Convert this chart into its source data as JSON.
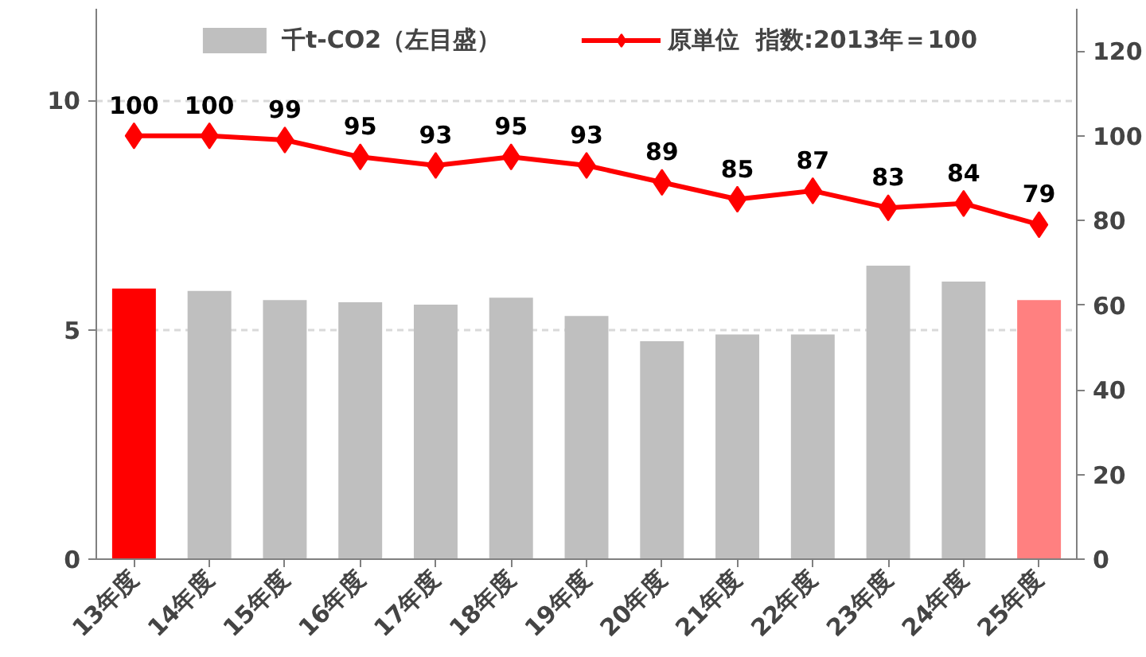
{
  "chart_data": {
    "type": "bar",
    "categories": [
      "13年度",
      "14年度",
      "15年度",
      "16年度",
      "17年度",
      "18年度",
      "19年度",
      "20年度",
      "21年度",
      "22年度",
      "23年度",
      "24年度",
      "25年度"
    ],
    "series": [
      {
        "name": "千t-CO2（左目盛）",
        "color": "#bfbfbf",
        "colors": [
          "#ff0000",
          "#bfbfbf",
          "#bfbfbf",
          "#bfbfbf",
          "#bfbfbf",
          "#bfbfbf",
          "#bfbfbf",
          "#bfbfbf",
          "#bfbfbf",
          "#bfbfbf",
          "#bfbfbf",
          "#bfbfbf",
          "#ff8080"
        ],
        "values": [
          5.9,
          5.85,
          5.65,
          5.6,
          5.55,
          5.7,
          5.3,
          4.75,
          4.9,
          4.9,
          6.4,
          6.05,
          5.65
        ]
      },
      {
        "name": "原単位  指数:2013年＝100",
        "type": "line",
        "axis": "y2",
        "color": "#ff0000",
        "marker": "diamond",
        "data_labels": true,
        "values": [
          100,
          100,
          99,
          95,
          93,
          95,
          93,
          89,
          85,
          87,
          83,
          84,
          79
        ]
      }
    ],
    "ylim": [
      0,
      12
    ],
    "yticks": [
      0,
      5,
      10
    ],
    "y2lim": [
      0,
      130
    ],
    "y2ticks": [
      0,
      20,
      40,
      60,
      80,
      100,
      120
    ],
    "grid": "y",
    "legend": "top"
  }
}
